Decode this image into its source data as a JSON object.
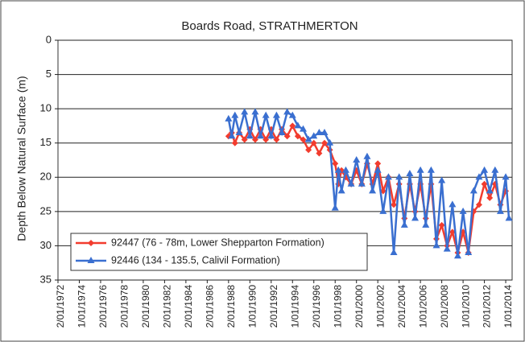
{
  "chart_data": {
    "type": "line",
    "title": "Boards Road, STRATHMERTON",
    "y_label": "Depth Below Natural Surface (m)",
    "invert_y": true,
    "grid": true,
    "legend": "lower left",
    "ylim": [
      0,
      35
    ],
    "yticks": [
      0,
      5,
      10,
      15,
      20,
      25,
      30,
      35
    ],
    "xlim": [
      1972,
      2014.6
    ],
    "xticks": [
      {
        "value": 1972,
        "label": "2/01/1972"
      },
      {
        "value": 1974,
        "label": "1/01/1974"
      },
      {
        "value": 1976,
        "label": "2/01/1976"
      },
      {
        "value": 1978,
        "label": "2/01/1978"
      },
      {
        "value": 1980,
        "label": "2/01/1980"
      },
      {
        "value": 1982,
        "label": "2/01/1982"
      },
      {
        "value": 1984,
        "label": "2/01/1984"
      },
      {
        "value": 1986,
        "label": "2/01/1986"
      },
      {
        "value": 1988,
        "label": "2/01/1988"
      },
      {
        "value": 1990,
        "label": "1/01/1990"
      },
      {
        "value": 1992,
        "label": "2/01/1992"
      },
      {
        "value": 1994,
        "label": "1/01/1994"
      },
      {
        "value": 1996,
        "label": "2/01/1996"
      },
      {
        "value": 1998,
        "label": "1/01/1998"
      },
      {
        "value": 2000,
        "label": "2/01/2000"
      },
      {
        "value": 2002,
        "label": "1/01/2002"
      },
      {
        "value": 2004,
        "label": "2/01/2004"
      },
      {
        "value": 2006,
        "label": "1/01/2006"
      },
      {
        "value": 2008,
        "label": "2/01/2008"
      },
      {
        "value": 2010,
        "label": "1/01/2010"
      },
      {
        "value": 2012,
        "label": "2/01/2012"
      },
      {
        "value": 2014,
        "label": "1/01/2014"
      }
    ],
    "series": [
      {
        "name": "92447 (76 - 78m, Lower Shepparton Formation)",
        "color": "#f23c2e",
        "marker": "diamond",
        "x": [
          1988.0,
          1988.3,
          1988.6,
          1989,
          1989.5,
          1990,
          1990.5,
          1991,
          1991.5,
          1992,
          1992.5,
          1993,
          1993.5,
          1994,
          1994.5,
          1995,
          1995.5,
          1996,
          1996.5,
          1997,
          1997.5,
          1998,
          1998.3,
          1998.6,
          1999,
          1999.5,
          2000,
          2000.5,
          2001,
          2001.5,
          2002,
          2002.5,
          2003,
          2003.5,
          2004,
          2004.5,
          2005,
          2005.5,
          2006,
          2006.5,
          2007,
          2007.5,
          2008,
          2008.5,
          2009,
          2009.5,
          2010,
          2010.5,
          2011,
          2011.5,
          2012,
          2012.5,
          2013,
          2013.5,
          2014
        ],
        "values": [
          14,
          13.5,
          15,
          13.5,
          14.5,
          13,
          14.5,
          13,
          14.5,
          13,
          14.5,
          13,
          14,
          12.5,
          14,
          14.5,
          16,
          15,
          16.5,
          15,
          16,
          18,
          21,
          19,
          20,
          21,
          19,
          21,
          18,
          21,
          18,
          22,
          20,
          24,
          21,
          26,
          21,
          25,
          21,
          26,
          21,
          29,
          27,
          30,
          28,
          31,
          28,
          31,
          25,
          24,
          21,
          23,
          21,
          24,
          22
        ]
      },
      {
        "name": "92446 (134 - 135.5, Calivil Formation)",
        "color": "#3a6fd0",
        "marker": "triangle",
        "x": [
          1988.0,
          1988.3,
          1988.6,
          1989,
          1989.5,
          1990,
          1990.5,
          1991,
          1991.5,
          1992,
          1992.5,
          1993,
          1993.5,
          1994,
          1994.5,
          1995,
          1995.5,
          1996,
          1996.5,
          1997,
          1997.5,
          1998,
          1998.3,
          1998.6,
          1999,
          1999.5,
          2000,
          2000.5,
          2001,
          2001.5,
          2002,
          2002.5,
          2003,
          2003.5,
          2004,
          2004.5,
          2005,
          2005.5,
          2006,
          2006.5,
          2007,
          2007.5,
          2008,
          2008.5,
          2009,
          2009.5,
          2010,
          2010.5,
          2011,
          2011.5,
          2012,
          2012.5,
          2013,
          2013.5,
          2014,
          2014.3
        ],
        "values": [
          11.5,
          14,
          11,
          13.5,
          10.5,
          14,
          10.5,
          14,
          11,
          14,
          11,
          13.5,
          10.5,
          11,
          12.5,
          13,
          14.5,
          14,
          13.5,
          13.5,
          15,
          24.5,
          19,
          22,
          19,
          21,
          17.5,
          21,
          17,
          22,
          19,
          25,
          20,
          31,
          20,
          27,
          19.5,
          26,
          19,
          27,
          19,
          30,
          20.5,
          30.5,
          24,
          31.5,
          25,
          31,
          22,
          20,
          19,
          22,
          19,
          25,
          20,
          26
        ]
      }
    ]
  }
}
